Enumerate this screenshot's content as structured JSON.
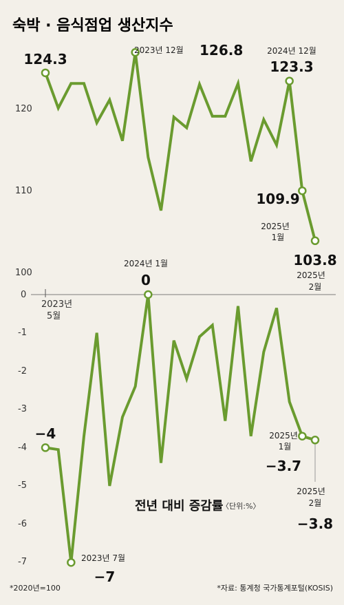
{
  "title": "숙박 · 음식점업 생산지수",
  "note_left": "*2020년=100",
  "note_right": "*자료: 통계청 국가통계포털(KOSIS)",
  "colors": {
    "line": "#6a9b2f",
    "marker_fill": "#ffffff",
    "background": "#f3f0e9"
  },
  "chart_data": [
    {
      "type": "line",
      "title": "숙박 · 음식점업 생산지수",
      "ylim": [
        100,
        127
      ],
      "yticks": [
        "120",
        "110",
        "100"
      ],
      "x_start_label": [
        "2023년",
        "5월"
      ],
      "values": [
        124.3,
        120.0,
        123.0,
        123.0,
        118.2,
        121.0,
        116.0,
        126.8,
        114.0,
        107.5,
        118.9,
        117.6,
        122.9,
        119.0,
        119.0,
        123.0,
        113.5,
        118.6,
        115.5,
        123.3,
        109.9,
        103.8
      ],
      "annotations": [
        {
          "index": 0,
          "label": "",
          "value_text": "124.3"
        },
        {
          "index": 7,
          "label": "2023년 12월",
          "value_text": "126.8"
        },
        {
          "index": 19,
          "label": "2024년 12월",
          "value_text": "123.3"
        },
        {
          "index": 20,
          "label": "2025년\n1월",
          "value_text": "109.9"
        },
        {
          "index": 21,
          "label": "2025년\n2월",
          "value_text": "103.8"
        }
      ]
    },
    {
      "type": "line",
      "title": "전년 대비 증감률",
      "unit": "〈단위:%〉",
      "ylim": [
        -7,
        0
      ],
      "yticks": [
        "0",
        "-1",
        "-2",
        "-3",
        "-4",
        "-5",
        "-6",
        "-7"
      ],
      "values": [
        -4.0,
        -4.05,
        -7.0,
        -3.7,
        -1.0,
        -5.0,
        -3.2,
        -2.4,
        0.0,
        -4.4,
        -1.2,
        -2.2,
        -1.1,
        -0.8,
        -3.3,
        -0.3,
        -3.7,
        -1.5,
        -0.35,
        -2.8,
        -3.7,
        -3.8
      ],
      "annotations": [
        {
          "index": 0,
          "label": "",
          "value_text": "−4"
        },
        {
          "index": 2,
          "label": "2023년 7월",
          "value_text": "−7"
        },
        {
          "index": 8,
          "label": "2024년 1월",
          "value_text": "0"
        },
        {
          "index": 20,
          "label": "2025년\n1월",
          "value_text": "−3.7"
        },
        {
          "index": 21,
          "label": "2025년\n2월",
          "value_text": "−3.8"
        }
      ]
    }
  ]
}
